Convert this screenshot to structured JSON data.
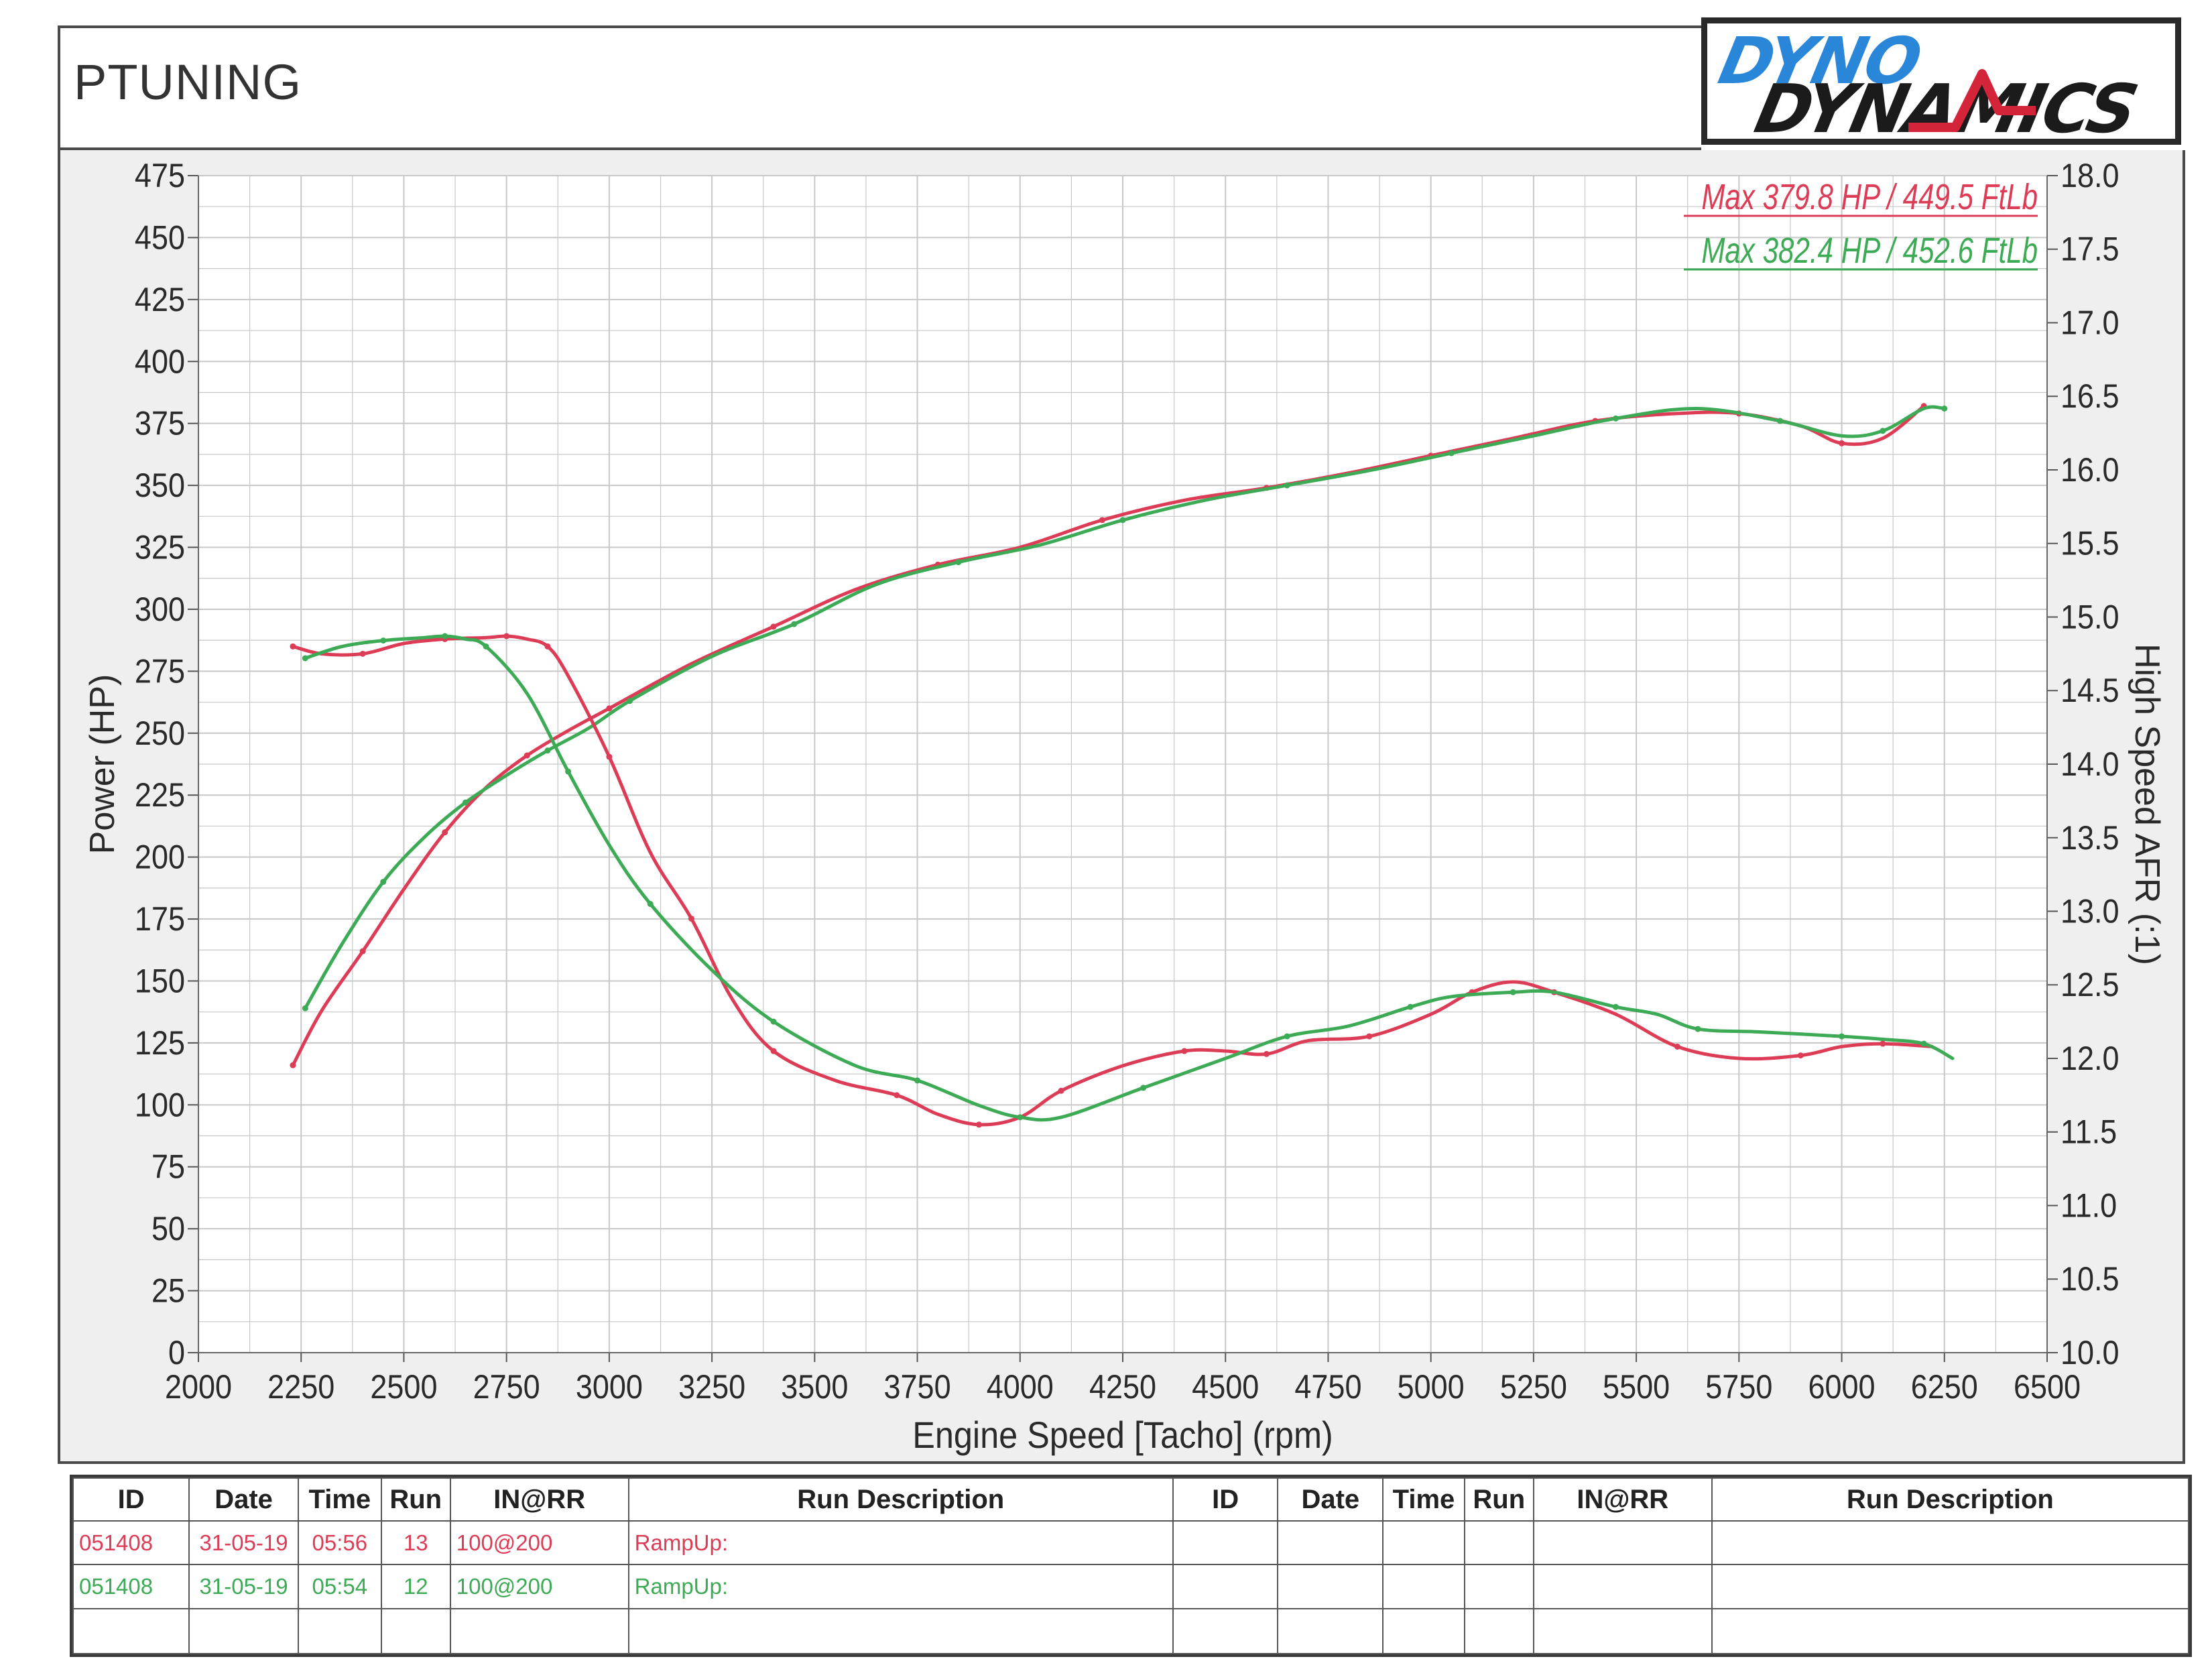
{
  "header": {
    "title": "PTUNING",
    "logo_line1": "DYNO",
    "logo_line2": "DYNAMICS"
  },
  "colors": {
    "red": "#dc3c55",
    "green": "#3daa55",
    "grid": "#c8c8c8",
    "logo_blue": "#2a86d8",
    "logo_red": "#d4243a"
  },
  "chart_data": {
    "type": "line",
    "xlabel": "Engine Speed [Tacho] (rpm)",
    "ylabel": "Power (HP)",
    "y2label": "High Speed AFR (:1)",
    "xlim": [
      2000,
      6500
    ],
    "ylim": [
      0,
      475
    ],
    "y2lim": [
      10.0,
      18.0
    ],
    "xticks": [
      "2000",
      "2250",
      "2500",
      "2750",
      "3000",
      "3250",
      "3500",
      "3750",
      "4000",
      "4250",
      "4500",
      "4750",
      "5000",
      "5250",
      "5500",
      "5750",
      "6000",
      "6250",
      "6500"
    ],
    "yticks": [
      "0",
      "25",
      "50",
      "75",
      "100",
      "125",
      "150",
      "175",
      "200",
      "225",
      "250",
      "275",
      "300",
      "325",
      "350",
      "375",
      "400",
      "425",
      "450",
      "475"
    ],
    "y2ticks": [
      "10.0",
      "10.5",
      "11.0",
      "11.5",
      "12.0",
      "12.5",
      "13.0",
      "13.5",
      "14.0",
      "14.5",
      "15.0",
      "15.5",
      "16.0",
      "16.5",
      "17.0",
      "17.5",
      "18.0"
    ],
    "grid": true,
    "legend": [
      {
        "text": "Max 379.8 HP  / 449.5 FtLb",
        "color": "#dc3c55"
      },
      {
        "text": "Max 382.4 HP  / 452.6 FtLb",
        "color": "#3daa55"
      }
    ],
    "series": [
      {
        "color": "#dc3c55",
        "axis": "power",
        "x": [
          2230,
          2300,
          2400,
          2500,
          2600,
          2700,
          2800,
          2900,
          3000,
          3200,
          3400,
          3600,
          3800,
          4000,
          4200,
          4400,
          4600,
          4800,
          5000,
          5200,
          5400,
          5600,
          5750,
          5900,
          6000,
          6100,
          6200
        ],
        "y": [
          116,
          138,
          162,
          187,
          210,
          228,
          241,
          251,
          260,
          278,
          293,
          308,
          318,
          325,
          336,
          344,
          349,
          355,
          362,
          369,
          376,
          379,
          379,
          374,
          367,
          369,
          382
        ]
      },
      {
        "color": "#3daa55",
        "axis": "power",
        "x": [
          2260,
          2350,
          2450,
          2550,
          2650,
          2750,
          2850,
          2950,
          3050,
          3250,
          3450,
          3650,
          3850,
          4050,
          4250,
          4450,
          4650,
          4850,
          5050,
          5250,
          5450,
          5650,
          5850,
          6000,
          6100,
          6200,
          6250
        ],
        "y": [
          139,
          165,
          190,
          208,
          222,
          233,
          243,
          252,
          263,
          281,
          294,
          310,
          319,
          326,
          336,
          344,
          350,
          356,
          363,
          370,
          377,
          381,
          376,
          370,
          372,
          381,
          381
        ]
      },
      {
        "color": "#dc3c55",
        "axis": "afr",
        "x": [
          2230,
          2300,
          2400,
          2500,
          2600,
          2700,
          2750,
          2800,
          2850,
          2900,
          3000,
          3100,
          3200,
          3300,
          3400,
          3550,
          3700,
          3800,
          3900,
          4000,
          4100,
          4250,
          4400,
          4500,
          4600,
          4700,
          4850,
          5000,
          5100,
          5200,
          5300,
          5450,
          5600,
          5750,
          5900,
          6000,
          6100,
          6220
        ],
        "y": [
          14.8,
          14.75,
          14.75,
          14.82,
          14.85,
          14.86,
          14.87,
          14.85,
          14.8,
          14.6,
          14.05,
          13.4,
          12.95,
          12.4,
          12.05,
          11.85,
          11.75,
          11.62,
          11.55,
          11.6,
          11.78,
          11.95,
          12.05,
          12.05,
          12.03,
          12.12,
          12.15,
          12.3,
          12.45,
          12.52,
          12.45,
          12.3,
          12.08,
          12.0,
          12.02,
          12.08,
          12.1,
          12.08
        ]
      },
      {
        "color": "#3daa55",
        "axis": "afr",
        "x": [
          2260,
          2350,
          2450,
          2550,
          2600,
          2650,
          2700,
          2800,
          2900,
          3000,
          3100,
          3250,
          3400,
          3600,
          3750,
          3900,
          4000,
          4100,
          4300,
          4500,
          4650,
          4800,
          4950,
          5050,
          5200,
          5300,
          5450,
          5550,
          5650,
          5800,
          6000,
          6100,
          6200,
          6270
        ],
        "y": [
          14.72,
          14.8,
          14.84,
          14.86,
          14.87,
          14.85,
          14.8,
          14.48,
          13.95,
          13.45,
          13.05,
          12.6,
          12.25,
          11.95,
          11.85,
          11.68,
          11.6,
          11.6,
          11.8,
          12.0,
          12.15,
          12.22,
          12.35,
          12.42,
          12.45,
          12.45,
          12.35,
          12.3,
          12.2,
          12.18,
          12.15,
          12.13,
          12.1,
          12.0
        ]
      }
    ]
  },
  "table": {
    "headers": [
      "ID",
      "Date",
      "Time",
      "Run",
      "IN@RR",
      "Run Description",
      "ID",
      "Date",
      "Time",
      "Run",
      "IN@RR",
      "Run Description"
    ],
    "rows": [
      {
        "id": "051408",
        "date": "31-05-19",
        "time": "05:56",
        "run": "13",
        "inrr": "100@200",
        "desc": "RampUp:",
        "color": "#dc3c55"
      },
      {
        "id": "051408",
        "date": "31-05-19",
        "time": "05:54",
        "run": "12",
        "inrr": "100@200",
        "desc": "RampUp:",
        "color": "#3daa55"
      }
    ]
  }
}
